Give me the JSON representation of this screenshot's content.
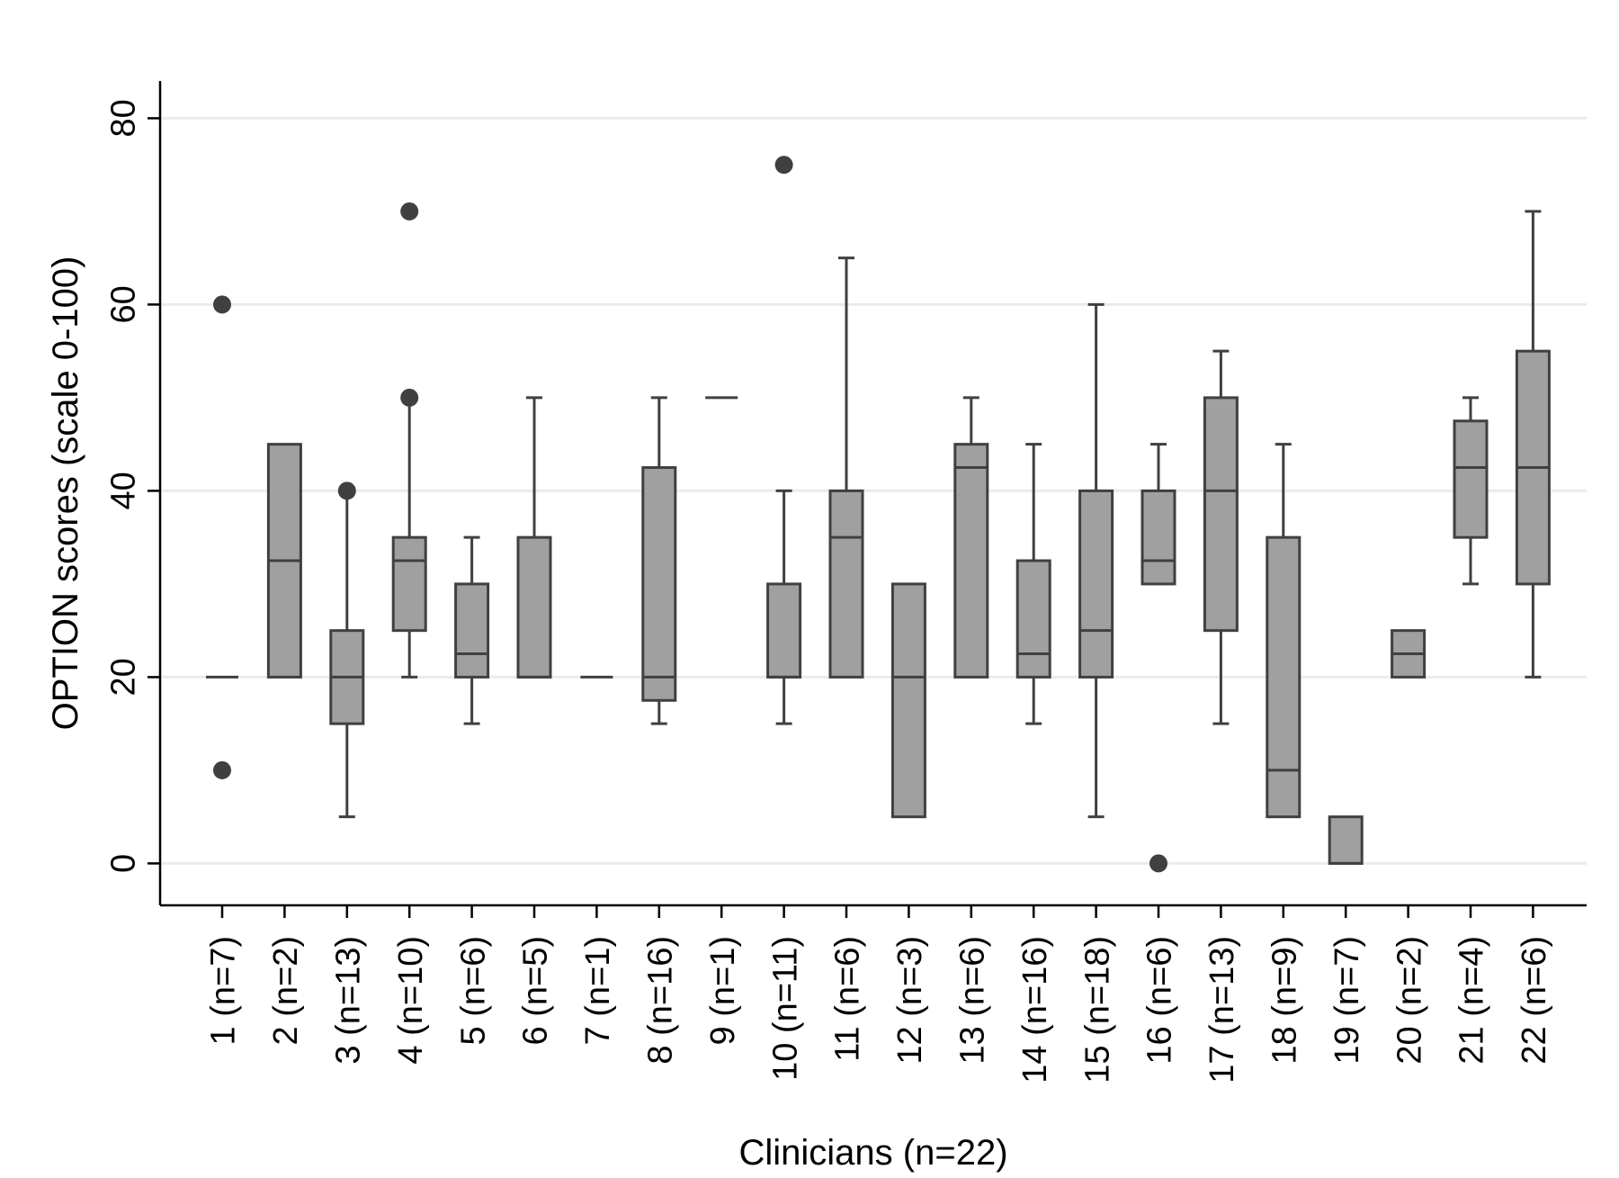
{
  "chart_data": {
    "type": "boxplot",
    "xlabel": "Clinicians (n=22)",
    "ylabel": "OPTION scores (scale 0-100)",
    "ylim": [
      -4.5,
      84
    ],
    "yticks": [
      0,
      20,
      40,
      60,
      80
    ],
    "grid": "horizontal",
    "colors": {
      "box_fill": "#a0a0a0",
      "stroke": "#404040",
      "grid": "#ebebeb",
      "axis": "#000000"
    },
    "categories": [
      "1 (n=7)",
      "2 (n=2)",
      "3 (n=13)",
      "4 (n=10)",
      "5 (n=6)",
      "6 (n=5)",
      "7 (n=1)",
      "8 (n=16)",
      "9 (n=1)",
      "10 (n=11)",
      "11 (n=6)",
      "12 (n=3)",
      "13 (n=6)",
      "14 (n=16)",
      "15 (n=18)",
      "16 (n=6)",
      "17 (n=13)",
      "18 (n=9)",
      "19 (n=7)",
      "20 (n=2)",
      "21 (n=4)",
      "22 (n=6)"
    ],
    "boxes": [
      {
        "q1": 20,
        "median": 20,
        "q3": 20,
        "whisker_low": 20,
        "whisker_high": 20,
        "outliers": [
          60,
          10
        ]
      },
      {
        "q1": 20,
        "median": 32.5,
        "q3": 45,
        "whisker_low": 20,
        "whisker_high": 45,
        "outliers": []
      },
      {
        "q1": 15,
        "median": 20,
        "q3": 25,
        "whisker_low": 5,
        "whisker_high": 40,
        "outliers": [
          40
        ]
      },
      {
        "q1": 25,
        "median": 32.5,
        "q3": 35,
        "whisker_low": 20,
        "whisker_high": 50,
        "outliers": [
          70,
          50
        ]
      },
      {
        "q1": 20,
        "median": 22.5,
        "q3": 30,
        "whisker_low": 15,
        "whisker_high": 35,
        "outliers": []
      },
      {
        "q1": 20,
        "median": 20,
        "q3": 35,
        "whisker_low": 20,
        "whisker_high": 50,
        "outliers": []
      },
      {
        "q1": 20,
        "median": 20,
        "q3": 20,
        "whisker_low": 20,
        "whisker_high": 20,
        "outliers": []
      },
      {
        "q1": 17.5,
        "median": 20,
        "q3": 42.5,
        "whisker_low": 15,
        "whisker_high": 50,
        "outliers": []
      },
      {
        "q1": 50,
        "median": 50,
        "q3": 50,
        "whisker_low": 50,
        "whisker_high": 50,
        "outliers": []
      },
      {
        "q1": 20,
        "median": 20,
        "q3": 30,
        "whisker_low": 15,
        "whisker_high": 40,
        "outliers": [
          75
        ]
      },
      {
        "q1": 20,
        "median": 35,
        "q3": 40,
        "whisker_low": 20,
        "whisker_high": 65,
        "outliers": []
      },
      {
        "q1": 5,
        "median": 20,
        "q3": 30,
        "whisker_low": 5,
        "whisker_high": 30,
        "outliers": []
      },
      {
        "q1": 20,
        "median": 42.5,
        "q3": 45,
        "whisker_low": 20,
        "whisker_high": 50,
        "outliers": []
      },
      {
        "q1": 20,
        "median": 22.5,
        "q3": 32.5,
        "whisker_low": 15,
        "whisker_high": 45,
        "outliers": []
      },
      {
        "q1": 20,
        "median": 25,
        "q3": 40,
        "whisker_low": 5,
        "whisker_high": 60,
        "outliers": []
      },
      {
        "q1": 30,
        "median": 32.5,
        "q3": 40,
        "whisker_low": 30,
        "whisker_high": 45,
        "outliers": [
          0
        ]
      },
      {
        "q1": 25,
        "median": 40,
        "q3": 50,
        "whisker_low": 15,
        "whisker_high": 55,
        "outliers": []
      },
      {
        "q1": 5,
        "median": 10,
        "q3": 35,
        "whisker_low": 5,
        "whisker_high": 45,
        "outliers": []
      },
      {
        "q1": 0,
        "median": 0,
        "q3": 5,
        "whisker_low": 0,
        "whisker_high": 5,
        "outliers": []
      },
      {
        "q1": 20,
        "median": 22.5,
        "q3": 25,
        "whisker_low": 20,
        "whisker_high": 25,
        "outliers": []
      },
      {
        "q1": 35,
        "median": 42.5,
        "q3": 47.5,
        "whisker_low": 30,
        "whisker_high": 50,
        "outliers": []
      },
      {
        "q1": 30,
        "median": 42.5,
        "q3": 55,
        "whisker_low": 20,
        "whisker_high": 70,
        "outliers": []
      }
    ]
  }
}
